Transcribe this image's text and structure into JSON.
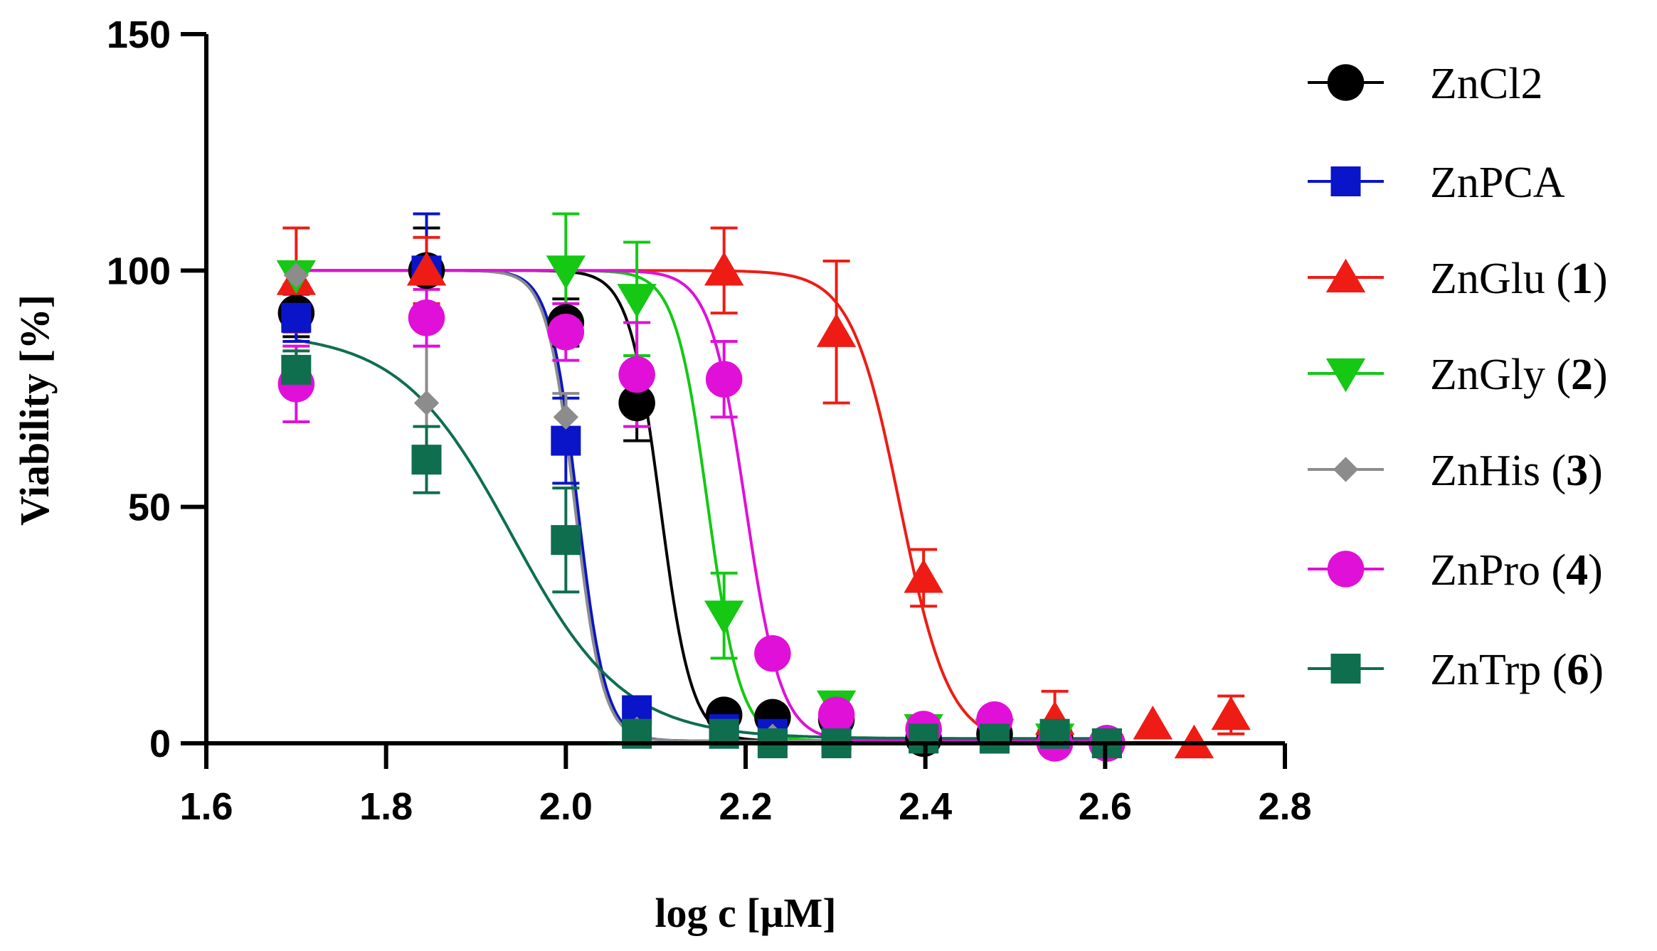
{
  "chart_data": {
    "type": "scatter",
    "title": "",
    "xlabel": "log c [μM]",
    "ylabel": "Viability [%]",
    "xlim": [
      1.6,
      2.8
    ],
    "ylim": [
      0,
      150
    ],
    "xticks": [
      "1.6",
      "1.8",
      "2.0",
      "2.2",
      "2.4",
      "2.6",
      "2.8"
    ],
    "yticks": [
      "0",
      "50",
      "100",
      "150"
    ],
    "grid": false,
    "legend_position": "right",
    "series": [
      {
        "name": "ZnCl2",
        "label_main": "ZnCl2",
        "label_num": "",
        "color": "#000000",
        "marker": "circle",
        "fit": {
          "top": 100,
          "bottom": 0.5,
          "logEC50": 2.105,
          "hill": 25
        },
        "points": [
          {
            "x": 1.7,
            "y": 91,
            "err": 5
          },
          {
            "x": 1.845,
            "y": 100,
            "err": 9
          },
          {
            "x": 2.0,
            "y": 89,
            "err": 5
          },
          {
            "x": 2.079,
            "y": 72,
            "err": 8
          },
          {
            "x": 2.176,
            "y": 6,
            "err": 1
          },
          {
            "x": 2.23,
            "y": 5.5,
            "err": 1
          },
          {
            "x": 2.301,
            "y": 5,
            "err": 1
          },
          {
            "x": 2.398,
            "y": 1,
            "err": 1
          },
          {
            "x": 2.477,
            "y": 2,
            "err": 1
          },
          {
            "x": 2.544,
            "y": 1.5,
            "err": 1
          },
          {
            "x": 2.602,
            "y": 0,
            "err": 0
          }
        ]
      },
      {
        "name": "ZnPCA",
        "label_main": "ZnPCA",
        "label_num": "",
        "color": "#0a14c8",
        "marker": "square",
        "fit": {
          "top": 100,
          "bottom": 0.5,
          "logEC50": 2.013,
          "hill": 28
        },
        "points": [
          {
            "x": 1.7,
            "y": 90,
            "err": 5
          },
          {
            "x": 1.845,
            "y": 100,
            "err": 12
          },
          {
            "x": 2.0,
            "y": 64,
            "err": 9
          },
          {
            "x": 2.079,
            "y": 7,
            "err": 1
          },
          {
            "x": 2.176,
            "y": 3,
            "err": 1
          },
          {
            "x": 2.23,
            "y": 2,
            "err": 1
          },
          {
            "x": 2.301,
            "y": 1.5,
            "err": 1
          },
          {
            "x": 2.398,
            "y": 1.5,
            "err": 1
          },
          {
            "x": 2.477,
            "y": 1,
            "err": 1
          },
          {
            "x": 2.544,
            "y": 1,
            "err": 1
          },
          {
            "x": 2.602,
            "y": 0,
            "err": 0
          }
        ]
      },
      {
        "name": "ZnGlu (1)",
        "label_main": "ZnGlu (",
        "label_num": "1",
        "color": "#ee1c14",
        "marker": "triangle-up",
        "fit": {
          "top": 100,
          "bottom": 0,
          "logEC50": 2.372,
          "hill": 16
        },
        "points": [
          {
            "x": 1.7,
            "y": 98,
            "err": 11
          },
          {
            "x": 1.845,
            "y": 100,
            "err": 7
          },
          {
            "x": 2.176,
            "y": 100,
            "err": 9
          },
          {
            "x": 2.301,
            "y": 87,
            "err": 15
          },
          {
            "x": 2.398,
            "y": 35,
            "err": 6
          },
          {
            "x": 2.544,
            "y": 5,
            "err": 6
          },
          {
            "x": 2.653,
            "y": 4,
            "err": 0
          },
          {
            "x": 2.699,
            "y": 0,
            "err": 0
          },
          {
            "x": 2.74,
            "y": 6,
            "err": 4
          }
        ]
      },
      {
        "name": "ZnGly (2)",
        "label_main": "ZnGly (",
        "label_num": "2",
        "color": "#14c814",
        "marker": "triangle-down",
        "fit": {
          "top": 100,
          "bottom": 0.5,
          "logEC50": 2.158,
          "hill": 24
        },
        "points": [
          {
            "x": 1.7,
            "y": 99,
            "err": 2
          },
          {
            "x": 2.0,
            "y": 100,
            "err": 12
          },
          {
            "x": 2.079,
            "y": 94,
            "err": 12
          },
          {
            "x": 2.176,
            "y": 27,
            "err": 9
          },
          {
            "x": 2.301,
            "y": 8,
            "err": 1
          },
          {
            "x": 2.398,
            "y": 3,
            "err": 1
          },
          {
            "x": 2.477,
            "y": 2,
            "err": 1
          },
          {
            "x": 2.544,
            "y": 1,
            "err": 1
          }
        ]
      },
      {
        "name": "ZnHis (3)",
        "label_main": "ZnHis (",
        "label_num": "3",
        "color": "#8c8c8c",
        "marker": "diamond",
        "fit": {
          "top": 100,
          "bottom": 0.5,
          "logEC50": 2.01,
          "hill": 28
        },
        "points": [
          {
            "x": 1.7,
            "y": 99,
            "err": 2
          },
          {
            "x": 1.845,
            "y": 72,
            "err": 12
          },
          {
            "x": 2.0,
            "y": 69,
            "err": 5
          },
          {
            "x": 2.079,
            "y": 3,
            "err": 1
          },
          {
            "x": 2.176,
            "y": 2,
            "err": 1
          },
          {
            "x": 2.23,
            "y": 1.5,
            "err": 1
          },
          {
            "x": 2.301,
            "y": 1,
            "err": 1
          },
          {
            "x": 2.398,
            "y": 1,
            "err": 1
          },
          {
            "x": 2.477,
            "y": 1,
            "err": 1
          },
          {
            "x": 2.544,
            "y": 1,
            "err": 1
          }
        ]
      },
      {
        "name": "ZnPro (4)",
        "label_main": "ZnPro (",
        "label_num": "4",
        "color": "#e010d8",
        "marker": "circle",
        "fit": {
          "top": 100,
          "bottom": 0.5,
          "logEC50": 2.2,
          "hill": 22
        },
        "points": [
          {
            "x": 1.7,
            "y": 76,
            "err": 8
          },
          {
            "x": 1.845,
            "y": 90,
            "err": 6
          },
          {
            "x": 2.0,
            "y": 87,
            "err": 6
          },
          {
            "x": 2.079,
            "y": 78,
            "err": 11
          },
          {
            "x": 2.176,
            "y": 77,
            "err": 8
          },
          {
            "x": 2.23,
            "y": 19,
            "err": 2
          },
          {
            "x": 2.301,
            "y": 6,
            "err": 2
          },
          {
            "x": 2.398,
            "y": 3,
            "err": 1
          },
          {
            "x": 2.477,
            "y": 5,
            "err": 1
          },
          {
            "x": 2.544,
            "y": 0,
            "err": 1
          },
          {
            "x": 2.602,
            "y": 0,
            "err": 0
          }
        ]
      },
      {
        "name": "ZnTrp (6)",
        "label_main": "ZnTrp (",
        "label_num": "6",
        "color": "#0e6e4e",
        "marker": "square",
        "fit": {
          "top": 87,
          "bottom": 1,
          "logEC50": 1.94,
          "hill": 7
        },
        "points": [
          {
            "x": 1.7,
            "y": 79,
            "err": 4
          },
          {
            "x": 1.845,
            "y": 60,
            "err": 7
          },
          {
            "x": 2.0,
            "y": 43,
            "err": 11
          },
          {
            "x": 2.079,
            "y": 2,
            "err": 1
          },
          {
            "x": 2.176,
            "y": 2,
            "err": 1
          },
          {
            "x": 2.23,
            "y": 0,
            "err": 1
          },
          {
            "x": 2.301,
            "y": 0,
            "err": 1
          },
          {
            "x": 2.398,
            "y": 1,
            "err": 1
          },
          {
            "x": 2.477,
            "y": 1,
            "err": 1
          },
          {
            "x": 2.544,
            "y": 2,
            "err": 1
          },
          {
            "x": 2.602,
            "y": 0,
            "err": 0
          }
        ]
      }
    ]
  }
}
